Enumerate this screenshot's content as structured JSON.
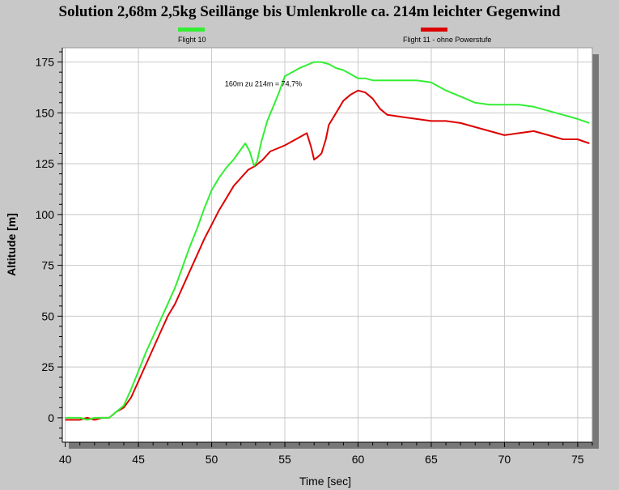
{
  "chart_data": {
    "type": "line",
    "title": "Solution 2,68m 2,5kg Seillänge bis Umlenkrolle ca. 214m leichter Gegenwind",
    "xlabel": "Time [sec]",
    "ylabel": "Altitude [m]",
    "xlim": [
      39.8,
      76
    ],
    "ylim": [
      -12,
      182
    ],
    "xticks": [
      40,
      45,
      50,
      55,
      60,
      65,
      70,
      75
    ],
    "yticks": [
      0,
      25,
      50,
      75,
      100,
      125,
      150,
      175
    ],
    "grid": true,
    "legend_position": "top",
    "annotation": {
      "text": "160m zu 214m = 74,7%",
      "x": 50.9,
      "y": 163
    },
    "series": [
      {
        "name": "Flight 10",
        "color": "#33ee33",
        "x": [
          40,
          41,
          41.5,
          42,
          42.5,
          43,
          43.5,
          44,
          44.5,
          45,
          45.5,
          46,
          46.5,
          47,
          47.5,
          48,
          48.5,
          49,
          49.5,
          50,
          50.5,
          51,
          51.5,
          52,
          52.3,
          52.6,
          52.9,
          53.1,
          53.4,
          53.8,
          54.2,
          54.6,
          55,
          55.5,
          56,
          57,
          57.5,
          58,
          58.5,
          59,
          59.5,
          60,
          60.5,
          61,
          62,
          63,
          64,
          65,
          65.5,
          66,
          67,
          68,
          69,
          70,
          71,
          72,
          73,
          74,
          75,
          75.8
        ],
        "y": [
          0,
          0,
          -1,
          0,
          0,
          0,
          3,
          6,
          14,
          23,
          32,
          40,
          48,
          56,
          64,
          74,
          84,
          93,
          103,
          112,
          118,
          123,
          127,
          132,
          135,
          131,
          124,
          126,
          136,
          146,
          153,
          160,
          168,
          170,
          172,
          175,
          175,
          174,
          172,
          171,
          169,
          167,
          167,
          166,
          166,
          166,
          166,
          165,
          163,
          161,
          158,
          155,
          154,
          154,
          154,
          153,
          151,
          149,
          147,
          145
        ],
        "values_note": ""
      },
      {
        "name": "Flight 11 - ohne Powerstufe",
        "color": "#dd0000",
        "x": [
          40,
          41,
          41.5,
          42,
          42.5,
          43,
          43.5,
          44,
          44.5,
          45,
          45.5,
          46,
          46.5,
          47,
          47.5,
          48,
          48.5,
          49,
          49.5,
          50,
          50.5,
          51,
          51.5,
          52,
          52.5,
          53,
          53.5,
          54,
          55,
          56,
          56.5,
          56.8,
          57,
          57.2,
          57.5,
          57.8,
          58,
          58.5,
          59,
          59.5,
          60,
          60.5,
          61,
          61.5,
          62,
          63,
          64,
          65,
          66,
          67,
          68,
          69,
          70,
          71,
          72,
          73,
          74,
          75,
          75.8
        ],
        "y": [
          -1,
          -1,
          0,
          -1,
          0,
          0,
          3,
          5,
          10,
          18,
          26,
          34,
          42,
          50,
          56,
          64,
          72,
          80,
          88,
          95,
          102,
          108,
          114,
          118,
          122,
          124,
          127,
          131,
          134,
          138,
          140,
          133,
          127,
          128,
          130,
          137,
          144,
          150,
          156,
          159,
          161,
          160,
          157,
          152,
          149,
          148,
          147,
          146,
          146,
          145,
          143,
          141,
          139,
          140,
          141,
          139,
          137,
          137,
          135
        ],
        "values_note": ""
      }
    ]
  }
}
